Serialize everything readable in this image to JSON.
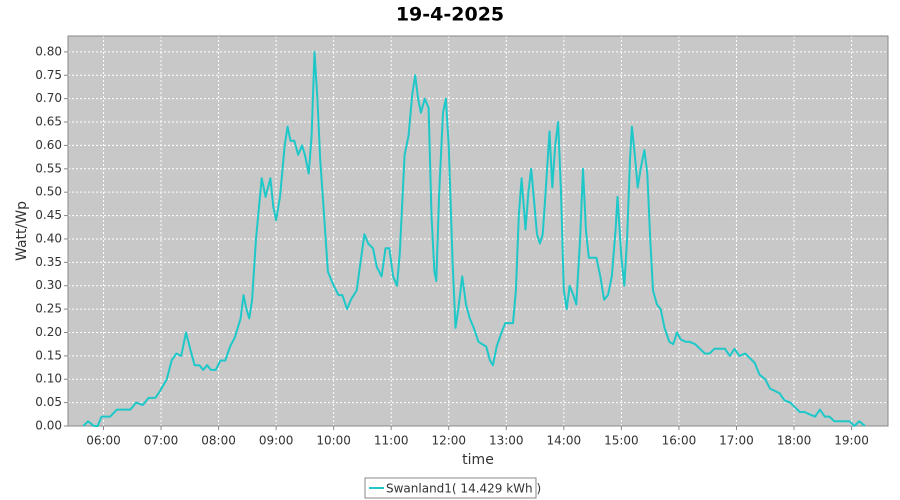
{
  "chart_data": {
    "type": "line",
    "title": "19-4-2025",
    "x_label": "time",
    "y_label": "Watt/Wp",
    "x": [
      "05:39",
      "05:44",
      "05:50",
      "05:54",
      "05:58",
      "06:03",
      "06:07",
      "06:14",
      "06:20",
      "06:28",
      "06:34",
      "06:41",
      "06:47",
      "06:54",
      "06:59",
      "07:06",
      "07:11",
      "07:16",
      "07:21",
      "07:26",
      "07:31",
      "07:35",
      "07:40",
      "07:44",
      "07:48",
      "07:52",
      "07:57",
      "08:02",
      "08:07",
      "08:12",
      "08:17",
      "08:23",
      "08:26",
      "08:29",
      "08:32",
      "08:35",
      "08:39",
      "08:45",
      "08:49",
      "08:54",
      "08:57",
      "09:00",
      "09:04",
      "09:09",
      "09:12",
      "09:15",
      "09:19",
      "09:23",
      "09:27",
      "09:30",
      "09:34",
      "09:37",
      "09:40",
      "09:43",
      "09:46",
      "09:50",
      "09:54",
      "10:00",
      "10:05",
      "10:09",
      "10:14",
      "10:18",
      "10:24",
      "10:28",
      "10:32",
      "10:36",
      "10:41",
      "10:45",
      "10:50",
      "10:54",
      "10:58",
      "11:02",
      "11:06",
      "11:09",
      "11:14",
      "11:18",
      "11:22",
      "11:25",
      "11:28",
      "11:31",
      "11:35",
      "11:39",
      "11:42",
      "11:45",
      "11:47",
      "11:50",
      "11:54",
      "11:57",
      "12:00",
      "12:04",
      "12:07",
      "12:10",
      "12:14",
      "12:18",
      "12:22",
      "12:26",
      "12:31",
      "12:35",
      "12:39",
      "12:43",
      "12:46",
      "12:50",
      "12:55",
      "12:59",
      "13:03",
      "13:07",
      "13:10",
      "13:13",
      "13:16",
      "13:20",
      "13:23",
      "13:26",
      "13:29",
      "13:32",
      "13:35",
      "13:38",
      "13:41",
      "13:45",
      "13:48",
      "13:51",
      "13:54",
      "13:57",
      "14:00",
      "14:03",
      "14:06",
      "14:10",
      "14:13",
      "14:17",
      "14:20",
      "14:23",
      "14:26",
      "14:29",
      "14:34",
      "14:38",
      "14:42",
      "14:46",
      "14:50",
      "14:54",
      "14:56",
      "15:00",
      "15:03",
      "15:06",
      "15:09",
      "15:11",
      "15:14",
      "15:17",
      "15:20",
      "15:24",
      "15:27",
      "15:30",
      "15:33",
      "15:37",
      "15:41",
      "15:45",
      "15:50",
      "15:54",
      "15:58",
      "16:02",
      "16:07",
      "16:11",
      "16:17",
      "16:22",
      "16:27",
      "16:32",
      "16:37",
      "16:43",
      "16:48",
      "16:53",
      "16:58",
      "17:03",
      "17:09",
      "17:14",
      "17:19",
      "17:24",
      "17:30",
      "17:35",
      "17:40",
      "17:45",
      "17:50",
      "17:56",
      "18:01",
      "18:06",
      "18:11",
      "18:16",
      "18:22",
      "18:27",
      "18:32",
      "18:37",
      "18:42",
      "18:48",
      "18:53",
      "18:58",
      "19:03",
      "19:08",
      "19:14"
    ],
    "series": [
      {
        "name": "Swanland1( 14.429 kWh )",
        "color": "#1ec8c8",
        "values": [
          0.0,
          0.01,
          0.0,
          0.0,
          0.02,
          0.02,
          0.02,
          0.035,
          0.035,
          0.035,
          0.05,
          0.045,
          0.06,
          0.06,
          0.075,
          0.1,
          0.14,
          0.155,
          0.15,
          0.2,
          0.16,
          0.13,
          0.13,
          0.12,
          0.13,
          0.12,
          0.12,
          0.14,
          0.14,
          0.17,
          0.19,
          0.23,
          0.28,
          0.25,
          0.23,
          0.27,
          0.4,
          0.53,
          0.49,
          0.53,
          0.47,
          0.44,
          0.49,
          0.6,
          0.64,
          0.61,
          0.61,
          0.58,
          0.6,
          0.58,
          0.54,
          0.62,
          0.8,
          0.7,
          0.57,
          0.45,
          0.33,
          0.3,
          0.28,
          0.28,
          0.25,
          0.27,
          0.29,
          0.35,
          0.41,
          0.39,
          0.38,
          0.34,
          0.32,
          0.38,
          0.38,
          0.32,
          0.3,
          0.37,
          0.58,
          0.62,
          0.71,
          0.75,
          0.7,
          0.67,
          0.7,
          0.68,
          0.45,
          0.33,
          0.31,
          0.5,
          0.67,
          0.7,
          0.6,
          0.35,
          0.21,
          0.25,
          0.32,
          0.26,
          0.23,
          0.21,
          0.18,
          0.175,
          0.17,
          0.14,
          0.13,
          0.17,
          0.2,
          0.22,
          0.22,
          0.22,
          0.29,
          0.45,
          0.53,
          0.42,
          0.5,
          0.55,
          0.48,
          0.41,
          0.39,
          0.41,
          0.5,
          0.63,
          0.51,
          0.6,
          0.65,
          0.5,
          0.29,
          0.25,
          0.3,
          0.28,
          0.26,
          0.4,
          0.55,
          0.42,
          0.36,
          0.36,
          0.36,
          0.32,
          0.27,
          0.28,
          0.32,
          0.42,
          0.49,
          0.36,
          0.3,
          0.4,
          0.57,
          0.64,
          0.58,
          0.51,
          0.55,
          0.59,
          0.54,
          0.4,
          0.29,
          0.26,
          0.25,
          0.21,
          0.18,
          0.175,
          0.2,
          0.185,
          0.18,
          0.18,
          0.175,
          0.165,
          0.155,
          0.155,
          0.165,
          0.165,
          0.165,
          0.15,
          0.165,
          0.15,
          0.155,
          0.145,
          0.135,
          0.11,
          0.1,
          0.08,
          0.075,
          0.07,
          0.055,
          0.05,
          0.04,
          0.03,
          0.03,
          0.025,
          0.02,
          0.035,
          0.02,
          0.02,
          0.01,
          0.01,
          0.01,
          0.01,
          0.0,
          0.01,
          0.0
        ]
      }
    ],
    "xlim": [
      "05:23",
      "19:38"
    ],
    "xticks": [
      "06:00",
      "07:00",
      "08:00",
      "09:00",
      "10:00",
      "11:00",
      "12:00",
      "13:00",
      "14:00",
      "15:00",
      "16:00",
      "17:00",
      "18:00",
      "19:00"
    ],
    "ylim": [
      0,
      0.834
    ],
    "yticks": [
      {
        "value": 0,
        "label": "0.00"
      },
      {
        "value": 0.05,
        "label": "0.05"
      },
      {
        "value": 0.1,
        "label": "0.10"
      },
      {
        "value": 0.15,
        "label": "0.15"
      },
      {
        "value": 0.2,
        "label": "0.20"
      },
      {
        "value": 0.25,
        "label": "0.25"
      },
      {
        "value": 0.3,
        "label": "0.30"
      },
      {
        "value": 0.35,
        "label": "0.35"
      },
      {
        "value": 0.4,
        "label": "0.40"
      },
      {
        "value": 0.45,
        "label": "0.45"
      },
      {
        "value": 0.5,
        "label": "0.50"
      },
      {
        "value": 0.55,
        "label": "0.55"
      },
      {
        "value": 0.6,
        "label": "0.60"
      },
      {
        "value": 0.65,
        "label": "0.65"
      },
      {
        "value": 0.7,
        "label": "0.70"
      },
      {
        "value": 0.75,
        "label": "0.75"
      },
      {
        "value": 0.8,
        "label": "0.80"
      }
    ],
    "grid": true
  }
}
